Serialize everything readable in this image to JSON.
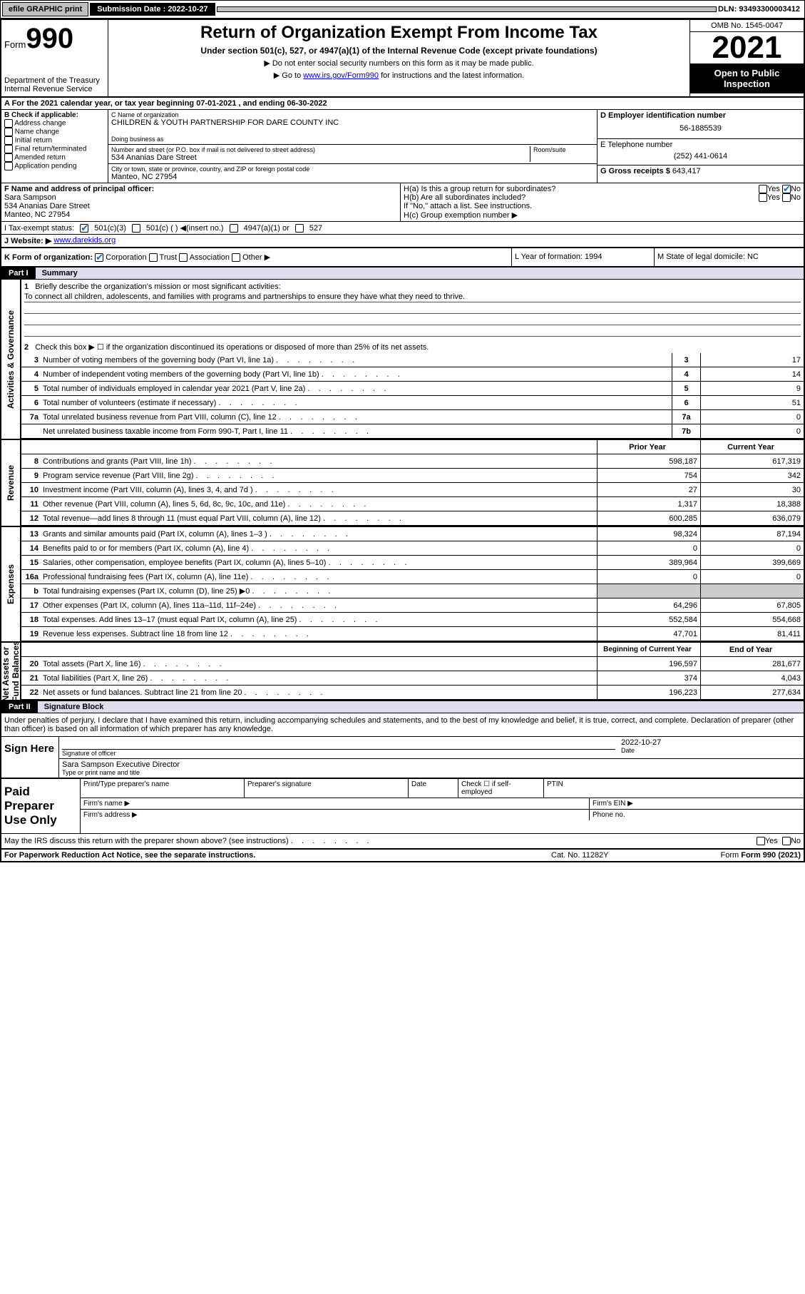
{
  "topbar": {
    "efile": "efile GRAPHIC print",
    "subdate_label": "Submission Date : 2022-10-27",
    "dln": "DLN: 93493300003412"
  },
  "header": {
    "form_word": "Form",
    "form_no": "990",
    "dept": "Department of the Treasury\nInternal Revenue Service",
    "title": "Return of Organization Exempt From Income Tax",
    "sub": "Under section 501(c), 527, or 4947(a)(1) of the Internal Revenue Code (except private foundations)",
    "note1": "▶ Do not enter social security numbers on this form as it may be made public.",
    "note2_pre": "▶ Go to ",
    "note2_link": "www.irs.gov/Form990",
    "note2_post": " for instructions and the latest information.",
    "omb": "OMB No. 1545-0047",
    "year": "2021",
    "open": "Open to Public Inspection"
  },
  "rowA": "A For the 2021 calendar year, or tax year beginning 07-01-2021   , and ending 06-30-2022",
  "colB": {
    "hdr": "B Check if applicable:",
    "opts": [
      "Address change",
      "Name change",
      "Initial return",
      "Final return/terminated",
      "Amended return",
      "Application pending"
    ]
  },
  "colC": {
    "name_lbl": "C Name of organization",
    "name": "CHILDREN & YOUTH PARTNERSHIP FOR DARE COUNTY INC",
    "dba_lbl": "Doing business as",
    "addr_lbl": "Number and street (or P.O. box if mail is not delivered to street address)",
    "room_lbl": "Room/suite",
    "addr": "534 Ananias Dare Street",
    "city_lbl": "City or town, state or province, country, and ZIP or foreign postal code",
    "city": "Manteo, NC  27954"
  },
  "colD": {
    "ein_lbl": "D Employer identification number",
    "ein": "56-1885539",
    "tel_lbl": "E Telephone number",
    "tel": "(252) 441-0614",
    "gross_lbl": "G Gross receipts $",
    "gross": "643,417"
  },
  "rowF": {
    "f_lbl": "F Name and address of principal officer:",
    "f_name": "Sara Sampson",
    "f_addr": "534 Ananias Dare Street\nManteo, NC  27954",
    "ha": "H(a)  Is this a group return for subordinates?",
    "hb": "H(b)  Are all subordinates included?",
    "hb_note": "If \"No,\" attach a list. See instructions.",
    "hc": "H(c)  Group exemption number ▶",
    "yes": "Yes",
    "no": "No"
  },
  "rowI": {
    "lbl": "I   Tax-exempt status:",
    "o1": "501(c)(3)",
    "o2": "501(c) (  ) ◀(insert no.)",
    "o3": "4947(a)(1) or",
    "o4": "527"
  },
  "rowJ": {
    "lbl": "J   Website: ▶",
    "val": "www.darekids.org"
  },
  "rowK": {
    "k_lbl": "K Form of organization:",
    "opts": [
      "Corporation",
      "Trust",
      "Association",
      "Other ▶"
    ],
    "l": "L Year of formation: 1994",
    "m": "M State of legal domicile: NC"
  },
  "part1": {
    "tag": "Part I",
    "title": "Summary"
  },
  "summary": {
    "q1_lbl": "Briefly describe the organization's mission or most significant activities:",
    "q1_val": "To connect all children, adolescents, and families with programs and partnerships to ensure they have what they need to thrive.",
    "q2": "Check this box ▶ ☐  if the organization discontinued its operations or disposed of more than 25% of its net assets.",
    "lines_gov": [
      {
        "n": "3",
        "d": "Number of voting members of the governing body (Part VI, line 1a)",
        "box": "3",
        "v": "17"
      },
      {
        "n": "4",
        "d": "Number of independent voting members of the governing body (Part VI, line 1b)",
        "box": "4",
        "v": "14"
      },
      {
        "n": "5",
        "d": "Total number of individuals employed in calendar year 2021 (Part V, line 2a)",
        "box": "5",
        "v": "9"
      },
      {
        "n": "6",
        "d": "Total number of volunteers (estimate if necessary)",
        "box": "6",
        "v": "51"
      },
      {
        "n": "7a",
        "d": "Total unrelated business revenue from Part VIII, column (C), line 12",
        "box": "7a",
        "v": "0"
      },
      {
        "n": "",
        "d": "Net unrelated business taxable income from Form 990-T, Part I, line 11",
        "box": "7b",
        "v": "0"
      }
    ],
    "hdr_prior": "Prior Year",
    "hdr_curr": "Current Year",
    "rev": [
      {
        "n": "8",
        "d": "Contributions and grants (Part VIII, line 1h)",
        "p": "598,187",
        "c": "617,319"
      },
      {
        "n": "9",
        "d": "Program service revenue (Part VIII, line 2g)",
        "p": "754",
        "c": "342"
      },
      {
        "n": "10",
        "d": "Investment income (Part VIII, column (A), lines 3, 4, and 7d )",
        "p": "27",
        "c": "30"
      },
      {
        "n": "11",
        "d": "Other revenue (Part VIII, column (A), lines 5, 6d, 8c, 9c, 10c, and 11e)",
        "p": "1,317",
        "c": "18,388"
      },
      {
        "n": "12",
        "d": "Total revenue—add lines 8 through 11 (must equal Part VIII, column (A), line 12)",
        "p": "600,285",
        "c": "636,079"
      }
    ],
    "exp": [
      {
        "n": "13",
        "d": "Grants and similar amounts paid (Part IX, column (A), lines 1–3 )",
        "p": "98,324",
        "c": "87,194"
      },
      {
        "n": "14",
        "d": "Benefits paid to or for members (Part IX, column (A), line 4)",
        "p": "0",
        "c": "0"
      },
      {
        "n": "15",
        "d": "Salaries, other compensation, employee benefits (Part IX, column (A), lines 5–10)",
        "p": "389,964",
        "c": "399,669"
      },
      {
        "n": "16a",
        "d": "Professional fundraising fees (Part IX, column (A), line 11e)",
        "p": "0",
        "c": "0"
      },
      {
        "n": "b",
        "d": "Total fundraising expenses (Part IX, column (D), line 25) ▶0",
        "p": "",
        "c": "",
        "grey": true
      },
      {
        "n": "17",
        "d": "Other expenses (Part IX, column (A), lines 11a–11d, 11f–24e)",
        "p": "64,296",
        "c": "67,805"
      },
      {
        "n": "18",
        "d": "Total expenses. Add lines 13–17 (must equal Part IX, column (A), line 25)",
        "p": "552,584",
        "c": "554,668"
      },
      {
        "n": "19",
        "d": "Revenue less expenses. Subtract line 18 from line 12",
        "p": "47,701",
        "c": "81,411"
      }
    ],
    "hdr_beg": "Beginning of Current Year",
    "hdr_end": "End of Year",
    "net": [
      {
        "n": "20",
        "d": "Total assets (Part X, line 16)",
        "p": "196,597",
        "c": "281,677"
      },
      {
        "n": "21",
        "d": "Total liabilities (Part X, line 26)",
        "p": "374",
        "c": "4,043"
      },
      {
        "n": "22",
        "d": "Net assets or fund balances. Subtract line 21 from line 20",
        "p": "196,223",
        "c": "277,634"
      }
    ]
  },
  "sidelabels": {
    "gov": "Activities & Governance",
    "rev": "Revenue",
    "exp": "Expenses",
    "net": "Net Assets or\nFund Balances"
  },
  "part2": {
    "tag": "Part II",
    "title": "Signature Block"
  },
  "sig": {
    "decl": "Under penalties of perjury, I declare that I have examined this return, including accompanying schedules and statements, and to the best of my knowledge and belief, it is true, correct, and complete. Declaration of preparer (other than officer) is based on all information of which preparer has any knowledge.",
    "sign_here": "Sign Here",
    "sig_officer": "Signature of officer",
    "date_lbl": "Date",
    "date": "2022-10-27",
    "name_title": "Sara Sampson  Executive Director",
    "type_lbl": "Type or print name and title",
    "paid": "Paid Preparer Use Only",
    "prep_name": "Print/Type preparer's name",
    "prep_sig": "Preparer's signature",
    "check_se": "Check ☐ if self-employed",
    "ptin": "PTIN",
    "firm_name": "Firm's name  ▶",
    "firm_ein": "Firm's EIN ▶",
    "firm_addr": "Firm's address ▶",
    "phone": "Phone no.",
    "may_irs": "May the IRS discuss this return with the preparer shown above? (see instructions)"
  },
  "footer": {
    "pra": "For Paperwork Reduction Act Notice, see the separate instructions.",
    "cat": "Cat. No. 11282Y",
    "form": "Form 990 (2021)"
  }
}
